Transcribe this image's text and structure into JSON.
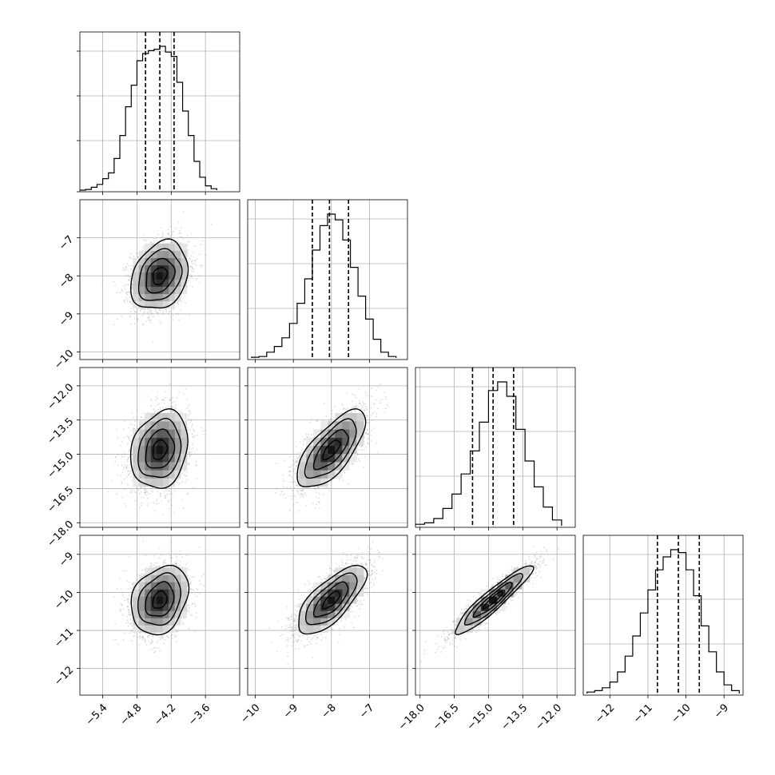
{
  "chart_data": {
    "type": "corner",
    "n_params": 4,
    "grid": true,
    "params": [
      {
        "range": [
          -5.8,
          -3.0
        ],
        "ticks": [
          -5.4,
          -4.8,
          -4.2,
          -3.6
        ],
        "tick_labels": [
          "−5.4",
          "−4.8",
          "−4.2",
          "−3.6"
        ],
        "mean": -4.4,
        "sd": 0.25,
        "quantiles": [
          -4.65,
          -4.4,
          -4.15
        ],
        "hist_centers": [
          -5.75,
          -5.65,
          -5.55,
          -5.45,
          -5.35,
          -5.25,
          -5.15,
          -5.05,
          -4.95,
          -4.85,
          -4.75,
          -4.65,
          -4.55,
          -4.45,
          -4.35,
          -4.25,
          -4.15,
          -4.05,
          -3.95,
          -3.85,
          -3.75,
          -3.65,
          -3.55,
          -3.45
        ],
        "hist_values": [
          0,
          0.5,
          2,
          4,
          8,
          12,
          22,
          38,
          58,
          73,
          90,
          95,
          97,
          98,
          100,
          96,
          93,
          75,
          55,
          38,
          20,
          9,
          3,
          1
        ]
      },
      {
        "range": [
          -10.2,
          -6.0
        ],
        "ticks": [
          -10,
          -9,
          -8,
          -7
        ],
        "tick_labels": [
          "−10",
          "−9",
          "−8",
          "−7"
        ],
        "mean": -8.0,
        "sd": 0.45,
        "quantiles": [
          -8.5,
          -8.05,
          -7.55
        ],
        "hist_centers": [
          -10.0,
          -9.8,
          -9.6,
          -9.4,
          -9.2,
          -9.0,
          -8.8,
          -8.6,
          -8.4,
          -8.2,
          -8.0,
          -7.8,
          -7.6,
          -7.4,
          -7.2,
          -7.0,
          -6.8,
          -6.6,
          -6.4
        ],
        "hist_values": [
          0.5,
          1,
          4,
          8,
          14,
          24,
          38,
          55,
          75,
          92,
          100,
          96,
          82,
          63,
          43,
          27,
          13,
          4,
          1
        ]
      },
      {
        "range": [
          -18.2,
          -11.2
        ],
        "ticks": [
          -18.0,
          -16.5,
          -15.0,
          -13.5,
          -12.0
        ],
        "tick_labels": [
          "−18.0",
          "−16.5",
          "−15.0",
          "−13.5",
          "−12.0"
        ],
        "mean": -14.8,
        "sd": 0.85,
        "quantiles": [
          -15.7,
          -14.8,
          -13.9
        ],
        "hist_centers": [
          -18.0,
          -17.6,
          -17.2,
          -16.8,
          -16.4,
          -16.0,
          -15.6,
          -15.2,
          -14.8,
          -14.4,
          -14.0,
          -13.6,
          -13.2,
          -12.8,
          -12.4,
          -12.0
        ],
        "hist_values": [
          1,
          2,
          5,
          12,
          22,
          36,
          52,
          72,
          94,
          100,
          90,
          67,
          45,
          27,
          13,
          4
        ]
      },
      {
        "range": [
          -12.7,
          -8.5
        ],
        "ticks": [
          -12,
          -11,
          -10,
          -9
        ],
        "tick_labels": [
          "−12",
          "−11",
          "−10",
          "−9"
        ],
        "mean": -10.2,
        "sd": 0.45,
        "quantiles": [
          -10.75,
          -10.2,
          -9.65
        ],
        "hist_centers": [
          -12.5,
          -12.3,
          -12.1,
          -11.9,
          -11.7,
          -11.5,
          -11.3,
          -11.1,
          -10.9,
          -10.7,
          -10.5,
          -10.3,
          -10.1,
          -9.9,
          -9.7,
          -9.5,
          -9.3,
          -9.1,
          -8.9,
          -8.7
        ],
        "hist_values": [
          1,
          2,
          4,
          8,
          15,
          26,
          40,
          56,
          72,
          86,
          95,
          100,
          98,
          86,
          68,
          47,
          29,
          15,
          6,
          2
        ]
      }
    ],
    "correlations": [
      [
        1,
        0.25,
        0.2,
        0.25
      ],
      [
        0.25,
        1,
        0.7,
        0.72
      ],
      [
        0.2,
        0.7,
        1,
        0.93
      ],
      [
        0.25,
        0.72,
        0.93,
        1
      ]
    ],
    "contour_sigma_levels": [
      0.5,
      1.0,
      1.5,
      2.0
    ]
  }
}
